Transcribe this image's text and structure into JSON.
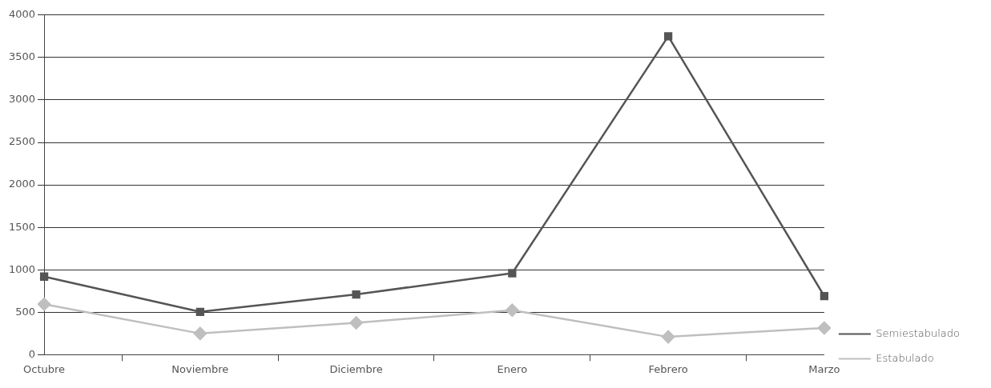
{
  "chart_data": {
    "type": "line",
    "categories": [
      "Octubre",
      "Noviembre",
      "Diciembre",
      "Enero",
      "Febrero",
      "Marzo"
    ],
    "series": [
      {
        "name": "Semiestabulado",
        "color": "#555555",
        "marker": "square",
        "values": [
          920,
          505,
          710,
          960,
          3750,
          690
        ]
      },
      {
        "name": "Estabulado",
        "color": "#bfbfbf",
        "marker": "diamond",
        "values": [
          595,
          250,
          375,
          525,
          210,
          315
        ]
      }
    ],
    "ylim": [
      0,
      4000
    ],
    "yticks": [
      0,
      500,
      1000,
      1500,
      2000,
      2500,
      3000,
      3500,
      4000
    ],
    "grid": "y",
    "legend": "right"
  }
}
